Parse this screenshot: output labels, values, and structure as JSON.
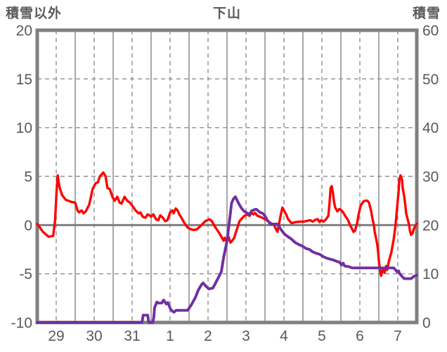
{
  "header": {
    "left_axis_title": "積雪以外",
    "title": "下山",
    "right_axis_title": "積雪"
  },
  "colors": {
    "text": "#595959",
    "frame": "#808080",
    "solid_grid": "#8a8a8a",
    "dashed_grid": "#909090",
    "zero_line": "#808080",
    "temp_line": "#ff0000",
    "snow_line": "#7030A0",
    "background": "#ffffff"
  },
  "chart_data": {
    "type": "line",
    "title": "下山",
    "xlabel": "",
    "x_tick_labels": [
      "29",
      "30",
      "31",
      "1",
      "2",
      "3",
      "4",
      "5",
      "6",
      "7"
    ],
    "x_range_days": [
      0,
      10
    ],
    "x_tick_positions_days": [
      0.5,
      1.5,
      2.5,
      3.5,
      4.5,
      5.5,
      6.5,
      7.5,
      8.5,
      9.5
    ],
    "left_axis": {
      "title": "積雪以外",
      "ticks": [
        20,
        15,
        10,
        5,
        0,
        -5,
        -10
      ],
      "range": [
        -10,
        20
      ]
    },
    "right_axis": {
      "title": "積雪",
      "ticks": [
        60,
        50,
        40,
        30,
        20,
        10,
        0
      ],
      "range": [
        0,
        60
      ]
    },
    "grid": {
      "vertical_solid_at_day_boundaries": true,
      "vertical_dashed_at_day_midpoints": true,
      "horizontal_dashed_left_values": [
        15,
        10,
        5,
        -5
      ],
      "horizontal_solid_left_values": [
        0
      ]
    },
    "legend": "none",
    "series": [
      {
        "name": "積雪以外",
        "axis": "left",
        "color": "#ff0000",
        "points": [
          [
            0,
            0.1
          ],
          [
            0.08,
            -0.3
          ],
          [
            0.15,
            -0.7
          ],
          [
            0.3,
            -1.2
          ],
          [
            0.42,
            -1.1
          ],
          [
            0.47,
            0.5
          ],
          [
            0.51,
            3.5
          ],
          [
            0.54,
            5.1
          ],
          [
            0.58,
            4
          ],
          [
            0.65,
            3.1
          ],
          [
            0.75,
            2.6
          ],
          [
            0.88,
            2.4
          ],
          [
            1,
            2.3
          ],
          [
            1.06,
            1.5
          ],
          [
            1.1,
            1.3
          ],
          [
            1.17,
            1.5
          ],
          [
            1.22,
            1.2
          ],
          [
            1.28,
            1.4
          ],
          [
            1.37,
            2.1
          ],
          [
            1.46,
            3.7
          ],
          [
            1.54,
            4.3
          ],
          [
            1.6,
            4.4
          ],
          [
            1.65,
            5
          ],
          [
            1.74,
            5.4
          ],
          [
            1.8,
            5
          ],
          [
            1.85,
            3.8
          ],
          [
            1.91,
            3.7
          ],
          [
            1.98,
            2.9
          ],
          [
            2.04,
            2.5
          ],
          [
            2.11,
            2.9
          ],
          [
            2.17,
            2.3
          ],
          [
            2.22,
            2.2
          ],
          [
            2.3,
            2.9
          ],
          [
            2.37,
            2.5
          ],
          [
            2.44,
            2.3
          ],
          [
            2.52,
            1.9
          ],
          [
            2.59,
            1.5
          ],
          [
            2.67,
            1.2
          ],
          [
            2.72,
            1.3
          ],
          [
            2.78,
            0.85
          ],
          [
            2.85,
            0.75
          ],
          [
            2.91,
            1.1
          ],
          [
            2.96,
            1
          ],
          [
            3,
            0.85
          ],
          [
            3.06,
            1.1
          ],
          [
            3.13,
            0.6
          ],
          [
            3.19,
            0.5
          ],
          [
            3.24,
            1
          ],
          [
            3.31,
            0.75
          ],
          [
            3.37,
            0.4
          ],
          [
            3.43,
            0.5
          ],
          [
            3.5,
            1.3
          ],
          [
            3.56,
            1.5
          ],
          [
            3.59,
            1.2
          ],
          [
            3.65,
            1.7
          ],
          [
            3.7,
            1.5
          ],
          [
            3.74,
            1.1
          ],
          [
            3.8,
            0.75
          ],
          [
            3.87,
            0.25
          ],
          [
            3.93,
            -0.1
          ],
          [
            3.98,
            -0.3
          ],
          [
            4.06,
            -0.45
          ],
          [
            4.13,
            -0.5
          ],
          [
            4.2,
            -0.45
          ],
          [
            4.3,
            -0.1
          ],
          [
            4.43,
            0.4
          ],
          [
            4.54,
            0.6
          ],
          [
            4.6,
            0.4
          ],
          [
            4.67,
            -0.1
          ],
          [
            4.8,
            -0.85
          ],
          [
            4.91,
            -1.6
          ],
          [
            4.94,
            -1.3
          ],
          [
            4.98,
            -1.65
          ],
          [
            5.04,
            -1.2
          ],
          [
            5.09,
            -1.8
          ],
          [
            5.13,
            -1.65
          ],
          [
            5.19,
            -1.3
          ],
          [
            5.22,
            -0.9
          ],
          [
            5.28,
            -0.2
          ],
          [
            5.33,
            0.4
          ],
          [
            5.41,
            0.75
          ],
          [
            5.46,
            0.95
          ],
          [
            5.54,
            1.1
          ],
          [
            5.59,
            0.95
          ],
          [
            5.65,
            1.25
          ],
          [
            5.7,
            1.1
          ],
          [
            5.74,
            1.25
          ],
          [
            5.8,
            0.95
          ],
          [
            5.87,
            0.85
          ],
          [
            5.93,
            0.75
          ],
          [
            6,
            0.6
          ],
          [
            6.07,
            0.45
          ],
          [
            6.15,
            0.2
          ],
          [
            6.24,
            0
          ],
          [
            6.3,
            -0.5
          ],
          [
            6.33,
            -0.7
          ],
          [
            6.38,
            0.3
          ],
          [
            6.43,
            1.3
          ],
          [
            6.46,
            1.8
          ],
          [
            6.5,
            1.5
          ],
          [
            6.56,
            1.1
          ],
          [
            6.61,
            0.6
          ],
          [
            6.7,
            0.2
          ],
          [
            6.8,
            0.3
          ],
          [
            6.91,
            0.35
          ],
          [
            7.02,
            0.35
          ],
          [
            7.13,
            0.45
          ],
          [
            7.2,
            0.5
          ],
          [
            7.26,
            0.35
          ],
          [
            7.33,
            0.55
          ],
          [
            7.39,
            0.6
          ],
          [
            7.44,
            0.3
          ],
          [
            7.48,
            0.5
          ],
          [
            7.54,
            0.35
          ],
          [
            7.61,
            0.6
          ],
          [
            7.67,
            0.95
          ],
          [
            7.7,
            2.2
          ],
          [
            7.73,
            3.8
          ],
          [
            7.76,
            4
          ],
          [
            7.79,
            3.3
          ],
          [
            7.82,
            2.4
          ],
          [
            7.85,
            1.8
          ],
          [
            7.91,
            1.4
          ],
          [
            7.96,
            1.65
          ],
          [
            8,
            1.55
          ],
          [
            8.06,
            1.3
          ],
          [
            8.13,
            0.85
          ],
          [
            8.19,
            0.5
          ],
          [
            8.24,
            0
          ],
          [
            8.31,
            -0.5
          ],
          [
            8.33,
            -0.7
          ],
          [
            8.37,
            -0.6
          ],
          [
            8.43,
            0.2
          ],
          [
            8.46,
            0.95
          ],
          [
            8.52,
            2
          ],
          [
            8.59,
            2.4
          ],
          [
            8.63,
            2.5
          ],
          [
            8.7,
            2.5
          ],
          [
            8.74,
            2.3
          ],
          [
            8.8,
            1.4
          ],
          [
            8.83,
            0.7
          ],
          [
            8.87,
            0
          ],
          [
            8.89,
            -0.7
          ],
          [
            8.93,
            -1.4
          ],
          [
            8.96,
            -2
          ],
          [
            8.98,
            -2.7
          ],
          [
            9,
            -3.6
          ],
          [
            9.02,
            -4.3
          ],
          [
            9.06,
            -5.2
          ],
          [
            9.11,
            -4.5
          ],
          [
            9.15,
            -4.9
          ],
          [
            9.19,
            -4.2
          ],
          [
            9.22,
            -4.6
          ],
          [
            9.26,
            -3.8
          ],
          [
            9.33,
            -2.8
          ],
          [
            9.39,
            -1.5
          ],
          [
            9.44,
            0
          ],
          [
            9.48,
            1.7
          ],
          [
            9.52,
            3.4
          ],
          [
            9.54,
            4.6
          ],
          [
            9.57,
            5.1
          ],
          [
            9.61,
            4.7
          ],
          [
            9.63,
            3.8
          ],
          [
            9.67,
            2.9
          ],
          [
            9.7,
            2
          ],
          [
            9.72,
            1.2
          ],
          [
            9.76,
            0.6
          ],
          [
            9.8,
            0
          ],
          [
            9.82,
            -0.6
          ],
          [
            9.85,
            -1
          ],
          [
            9.89,
            -0.85
          ],
          [
            9.91,
            -0.5
          ],
          [
            9.94,
            -0.25
          ],
          [
            9.98,
            0
          ],
          [
            10,
            0.15
          ]
        ]
      },
      {
        "name": "積雪",
        "axis": "right",
        "color": "#7030A0",
        "points": [
          [
            0,
            0
          ],
          [
            2.76,
            0
          ],
          [
            2.79,
            1.5
          ],
          [
            2.91,
            1.5
          ],
          [
            2.94,
            0
          ],
          [
            3.04,
            0
          ],
          [
            3.07,
            1
          ],
          [
            3.09,
            3
          ],
          [
            3.15,
            4.2
          ],
          [
            3.19,
            4
          ],
          [
            3.28,
            4
          ],
          [
            3.33,
            4.6
          ],
          [
            3.4,
            3.8
          ],
          [
            3.44,
            4.1
          ],
          [
            3.52,
            2.6
          ],
          [
            3.6,
            2.1
          ],
          [
            3.66,
            2.5
          ],
          [
            3.96,
            2.5
          ],
          [
            4.06,
            3.6
          ],
          [
            4.17,
            5.2
          ],
          [
            4.24,
            6.6
          ],
          [
            4.33,
            7.8
          ],
          [
            4.37,
            8.1
          ],
          [
            4.45,
            7.4
          ],
          [
            4.52,
            6.9
          ],
          [
            4.63,
            7.1
          ],
          [
            4.76,
            9
          ],
          [
            4.85,
            10.4
          ],
          [
            4.91,
            13.3
          ],
          [
            5,
            16.7
          ],
          [
            5.06,
            20.5
          ],
          [
            5.12,
            24.5
          ],
          [
            5.17,
            25.4
          ],
          [
            5.22,
            25.8
          ],
          [
            5.31,
            24.4
          ],
          [
            5.37,
            23.6
          ],
          [
            5.44,
            22.9
          ],
          [
            5.5,
            22.6
          ],
          [
            5.59,
            22.2
          ],
          [
            5.65,
            22.9
          ],
          [
            5.74,
            23.2
          ],
          [
            5.78,
            23.2
          ],
          [
            5.87,
            22.6
          ],
          [
            5.94,
            22.4
          ],
          [
            6,
            21.9
          ],
          [
            6.06,
            21
          ],
          [
            6.15,
            20.2
          ],
          [
            6.33,
            20.2
          ],
          [
            6.43,
            19
          ],
          [
            6.52,
            18.1
          ],
          [
            6.61,
            17.6
          ],
          [
            6.7,
            17.1
          ],
          [
            6.8,
            16.4
          ],
          [
            6.89,
            16
          ],
          [
            6.98,
            15.7
          ],
          [
            7.08,
            15.2
          ],
          [
            7.17,
            15
          ],
          [
            7.26,
            14.5
          ],
          [
            7.35,
            14.2
          ],
          [
            7.44,
            14
          ],
          [
            7.54,
            13.5
          ],
          [
            7.63,
            13.2
          ],
          [
            7.72,
            13
          ],
          [
            7.81,
            12.8
          ],
          [
            7.91,
            12.5
          ],
          [
            7.96,
            12.4
          ],
          [
            8.02,
            11.8
          ],
          [
            8.06,
            12.2
          ],
          [
            8.1,
            11.6
          ],
          [
            8.19,
            11.5
          ],
          [
            8.3,
            11.2
          ],
          [
            9.39,
            11.2
          ],
          [
            9.44,
            10.8
          ],
          [
            9.48,
            10.4
          ],
          [
            9.52,
            10.6
          ],
          [
            9.55,
            10
          ],
          [
            9.63,
            9.3
          ],
          [
            9.67,
            9
          ],
          [
            9.85,
            9
          ],
          [
            9.93,
            9.5
          ],
          [
            10,
            9.7
          ]
        ]
      }
    ]
  }
}
